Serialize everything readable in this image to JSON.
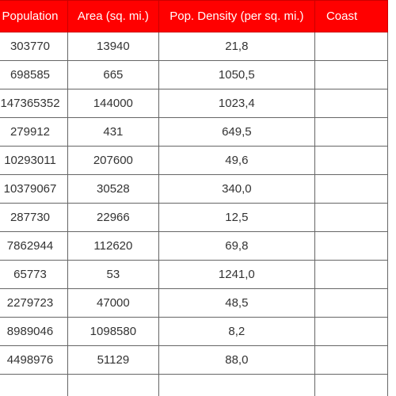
{
  "theme": {
    "header_bg": "#ff0000",
    "header_text": "#ffffff",
    "cell_text": "#333333",
    "border": "#666666"
  },
  "table": {
    "columns": [
      "Population",
      "Area (sq. mi.)",
      "Pop. Density (per sq. mi.)",
      "Coast"
    ],
    "rows": [
      [
        "303770",
        "13940",
        "21,8",
        ""
      ],
      [
        "698585",
        "665",
        "1050,5",
        ""
      ],
      [
        "147365352",
        "144000",
        "1023,4",
        ""
      ],
      [
        "279912",
        "431",
        "649,5",
        ""
      ],
      [
        "10293011",
        "207600",
        "49,6",
        ""
      ],
      [
        "10379067",
        "30528",
        "340,0",
        ""
      ],
      [
        "287730",
        "22966",
        "12,5",
        ""
      ],
      [
        "7862944",
        "112620",
        "69,8",
        ""
      ],
      [
        "65773",
        "53",
        "1241,0",
        ""
      ],
      [
        "2279723",
        "47000",
        "48,5",
        ""
      ],
      [
        "8989046",
        "1098580",
        "8,2",
        ""
      ],
      [
        "4498976",
        "51129",
        "88,0",
        ""
      ],
      [
        "",
        "",
        "",
        ""
      ]
    ]
  }
}
